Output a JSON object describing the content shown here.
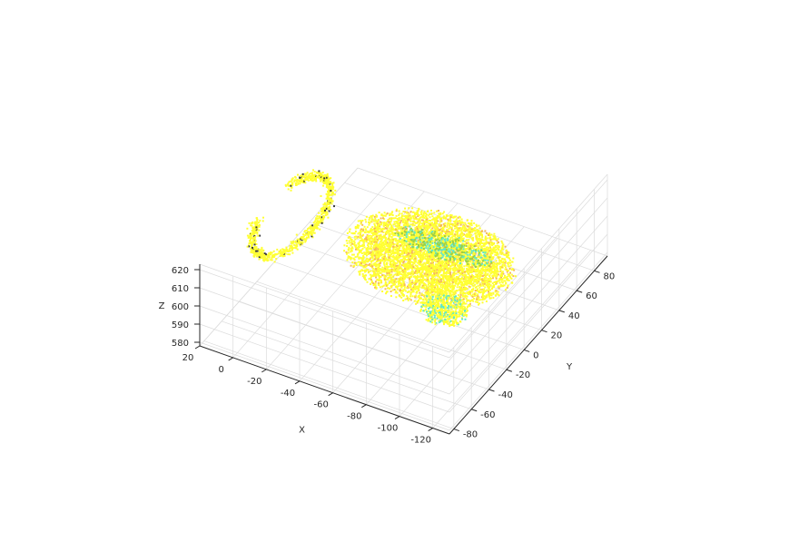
{
  "chart_data": {
    "type": "scatter",
    "projection": "3d",
    "grid": true,
    "colors": {
      "dominant": "#ffff33",
      "secondary": [
        "#f5b75a",
        "#9ccf45",
        "#5fe7c8",
        "#3a3a3a"
      ]
    },
    "axes": {
      "x": {
        "label": "X",
        "ticks": [
          20,
          0,
          -20,
          -40,
          -60,
          -80,
          -100,
          -120
        ],
        "tick_labels": [
          "20",
          "0",
          "-20",
          "-40",
          "-60",
          "-80",
          "-100",
          "-120"
        ],
        "range": [
          20,
          -130
        ]
      },
      "y": {
        "label": "Y",
        "ticks": [
          -80,
          -60,
          -40,
          -20,
          0,
          20,
          40,
          60,
          80
        ],
        "tick_labels": [
          "-80",
          "-60",
          "-40",
          "-20",
          "0",
          "20",
          "40",
          "60",
          "80"
        ],
        "range": [
          -85,
          95
        ]
      },
      "z": {
        "label": "Z",
        "ticks": [
          580,
          590,
          600,
          610,
          620
        ],
        "tick_labels": [
          "580",
          "590",
          "600",
          "610",
          "620"
        ],
        "range": [
          578,
          623
        ]
      }
    },
    "point_cloud": {
      "description_free": true,
      "regions": [
        {
          "kind": "body",
          "cx": -65,
          "cy": 15,
          "cz": 600,
          "rx": 48,
          "ry": 38,
          "rz": 10,
          "count": 5200,
          "color": "#ffff33",
          "alt_color": "#f5b75a",
          "alt_ratio": 0.12
        },
        {
          "kind": "handle",
          "cx": 5,
          "cy": -10,
          "cz": 614,
          "radius_x": 22,
          "radius_y": 38,
          "count": 900,
          "color": "#ffff33",
          "alt_color": "#3a3a3a",
          "alt_ratio": 0.06
        },
        {
          "kind": "spout",
          "cx": -100,
          "cy": -35,
          "cz": 610,
          "rx": 14,
          "ry": 12,
          "rz": 5,
          "count": 500,
          "color": "#ffff33",
          "alt_color": "#5fe7c8",
          "alt_ratio": 0.25
        },
        {
          "kind": "base",
          "cx": -55,
          "cy": 50,
          "cz": 584,
          "rx": 30,
          "ry": 10,
          "rz": 3,
          "count": 350,
          "color": "#9ccf45",
          "alt_color": "#5fe7c8",
          "alt_ratio": 0.45
        }
      ]
    }
  }
}
